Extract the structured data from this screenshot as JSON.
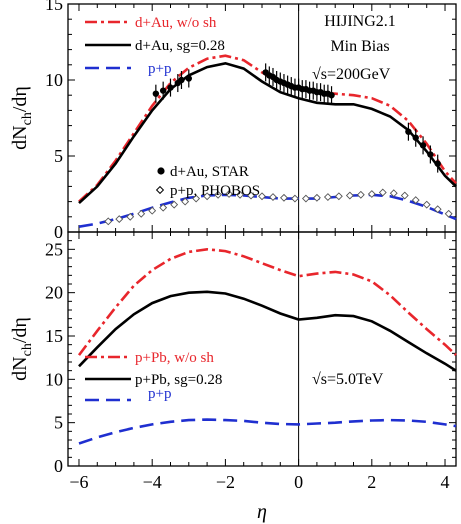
{
  "chart_data": [
    {
      "panel": "top",
      "type": "line",
      "xlim": [
        -6.3,
        4.3
      ],
      "ylim": [
        0,
        15
      ],
      "xticks": [
        -6,
        -4,
        -2,
        0,
        2,
        4
      ],
      "yticks": [
        0,
        5,
        10,
        15
      ],
      "xlabel": "",
      "ylabel": "dN_ch/dη",
      "annotation": {
        "line1": "HIJING2.1",
        "line2": "Min Bias",
        "sqrt": "√s",
        "energy": "=200GeV"
      },
      "series": [
        {
          "name": "d+Au, w/o sh",
          "color": "#e8262c",
          "dash": "dashdot",
          "x": [
            -6,
            -5.5,
            -5,
            -4.5,
            -4,
            -3.5,
            -3,
            -2.5,
            -2,
            -1.5,
            -1,
            -0.5,
            0,
            0.5,
            1,
            1.5,
            2,
            2.5,
            3,
            3.5,
            4,
            4.3
          ],
          "y": [
            2.0,
            3.1,
            4.7,
            6.5,
            8.3,
            9.8,
            10.8,
            11.4,
            11.6,
            11.3,
            10.5,
            9.8,
            9.4,
            9.2,
            9.1,
            9.0,
            8.8,
            8.3,
            7.3,
            5.8,
            4.0,
            3.2
          ]
        },
        {
          "name": "d+Au, sg=0.28",
          "color": "#000000",
          "dash": "solid",
          "x": [
            -6,
            -5.5,
            -5,
            -4.5,
            -4,
            -3.5,
            -3,
            -2.5,
            -2,
            -1.5,
            -1,
            -0.5,
            0,
            0.5,
            1,
            1.5,
            2,
            2.5,
            3,
            3.5,
            4,
            4.3
          ],
          "y": [
            1.9,
            3.0,
            4.5,
            6.3,
            8.0,
            9.4,
            10.3,
            10.85,
            11.1,
            10.75,
            9.9,
            9.2,
            8.8,
            8.5,
            8.4,
            8.4,
            8.1,
            7.6,
            6.7,
            5.3,
            3.7,
            3.0
          ]
        },
        {
          "name": "p+p",
          "color": "#1f2fd0",
          "dash": "dash",
          "x": [
            -6,
            -5.5,
            -5,
            -4.5,
            -4,
            -3.5,
            -3,
            -2.5,
            -2,
            -1.5,
            -1,
            -0.5,
            0,
            0.5,
            1,
            1.5,
            2,
            2.5,
            3,
            3.5,
            4,
            4.3
          ],
          "y": [
            0.35,
            0.55,
            0.85,
            1.2,
            1.6,
            1.95,
            2.25,
            2.4,
            2.45,
            2.4,
            2.3,
            2.2,
            2.2,
            2.2,
            2.3,
            2.4,
            2.45,
            2.35,
            2.05,
            1.65,
            1.15,
            0.85
          ]
        }
      ],
      "data": [
        {
          "name": "d+Au, STAR",
          "marker": "filled-circle",
          "x": [
            -3.9,
            -3.7,
            -3.5,
            -3.3,
            -3.2,
            -3.0
          ],
          "y": [
            9.1,
            9.3,
            9.5,
            9.8,
            10.0,
            10.1
          ]
        },
        {
          "name": "",
          "marker": "filled-circle",
          "x": [
            -0.9,
            -0.8,
            -0.7,
            -0.6,
            -0.5,
            -0.4,
            -0.3,
            -0.2,
            -0.1,
            0,
            0.1,
            0.2,
            0.3,
            0.4,
            0.5,
            0.6,
            0.7,
            0.8,
            0.9
          ],
          "y": [
            10.5,
            10.3,
            10.2,
            10.0,
            9.9,
            9.8,
            9.7,
            9.6,
            9.5,
            9.5,
            9.4,
            9.4,
            9.3,
            9.3,
            9.2,
            9.2,
            9.1,
            9.1,
            9.0
          ]
        },
        {
          "name": "",
          "marker": "filled-circle",
          "x": [
            3.0,
            3.2,
            3.4,
            3.6,
            3.8
          ],
          "y": [
            6.6,
            6.2,
            5.7,
            5.1,
            4.5
          ]
        },
        {
          "name": "p+p, PHOBOS",
          "marker": "open-diamond",
          "x": [
            -5.2,
            -4.9,
            -4.6,
            -4.3,
            -4.0,
            -3.7,
            -3.4,
            -3.1,
            -2.8,
            -2.5,
            -2.2,
            -1.9,
            -1.6,
            -1.3,
            -1.0,
            -0.7,
            -0.4,
            -0.1,
            0.2,
            0.5,
            0.8,
            1.1,
            1.4,
            1.7,
            2.0,
            2.3,
            2.6,
            2.9,
            3.2,
            3.5,
            3.8,
            4.1
          ],
          "y": [
            0.7,
            0.85,
            1.0,
            1.2,
            1.4,
            1.6,
            1.8,
            2.0,
            2.2,
            2.35,
            2.45,
            2.5,
            2.45,
            2.4,
            2.35,
            2.3,
            2.25,
            2.2,
            2.2,
            2.25,
            2.3,
            2.35,
            2.4,
            2.45,
            2.5,
            2.6,
            2.55,
            2.4,
            2.1,
            1.8,
            1.5,
            1.2
          ]
        }
      ]
    },
    {
      "panel": "bottom",
      "type": "line",
      "xlim": [
        -6.3,
        4.3
      ],
      "ylim": [
        0,
        27
      ],
      "xticks": [
        -6,
        -4,
        -2,
        0,
        2,
        4
      ],
      "yticks": [
        0,
        5,
        10,
        15,
        20,
        25
      ],
      "xlabel": "η",
      "ylabel": "dN_ch/dη",
      "annotation": {
        "sqrt": "√s",
        "energy": "=5.0TeV"
      },
      "series": [
        {
          "name": "p+Pb, w/o sh",
          "color": "#e8262c",
          "dash": "dashdot",
          "x": [
            -6,
            -5.5,
            -5,
            -4.5,
            -4,
            -3.5,
            -3,
            -2.5,
            -2,
            -1.5,
            -1,
            -0.5,
            0,
            0.5,
            1,
            1.5,
            2,
            2.5,
            3,
            3.5,
            4,
            4.3
          ],
          "y": [
            12.8,
            15.6,
            18.3,
            20.8,
            22.6,
            23.9,
            24.7,
            25.0,
            24.8,
            24.2,
            23.4,
            22.6,
            21.9,
            22.2,
            22.4,
            22.1,
            21.3,
            19.7,
            17.7,
            15.8,
            14.0,
            12.8
          ]
        },
        {
          "name": "p+Pb, sg=0.28",
          "color": "#000000",
          "dash": "solid",
          "x": [
            -6,
            -5.5,
            -5,
            -4.5,
            -4,
            -3.5,
            -3,
            -2.5,
            -2,
            -1.5,
            -1,
            -0.5,
            0,
            0.5,
            1,
            1.5,
            2,
            2.5,
            3,
            3.5,
            4,
            4.3
          ],
          "y": [
            11.5,
            13.7,
            15.8,
            17.5,
            18.8,
            19.6,
            20.0,
            20.1,
            19.9,
            19.3,
            18.5,
            17.6,
            16.9,
            17.1,
            17.4,
            17.3,
            16.7,
            15.6,
            14.3,
            13.0,
            11.8,
            11.0
          ]
        },
        {
          "name": "p+p",
          "color": "#1f2fd0",
          "dash": "dash",
          "x": [
            -6,
            -5.5,
            -5,
            -4.5,
            -4,
            -3.5,
            -3,
            -2.5,
            -2,
            -1.5,
            -1,
            -0.5,
            0,
            0.5,
            1,
            1.5,
            2,
            2.5,
            3,
            3.5,
            4,
            4.3
          ],
          "y": [
            2.6,
            3.3,
            3.9,
            4.4,
            4.8,
            5.1,
            5.3,
            5.35,
            5.3,
            5.2,
            5.0,
            4.85,
            4.8,
            4.9,
            5.0,
            5.15,
            5.25,
            5.3,
            5.25,
            5.1,
            4.8,
            4.6
          ]
        }
      ]
    }
  ]
}
